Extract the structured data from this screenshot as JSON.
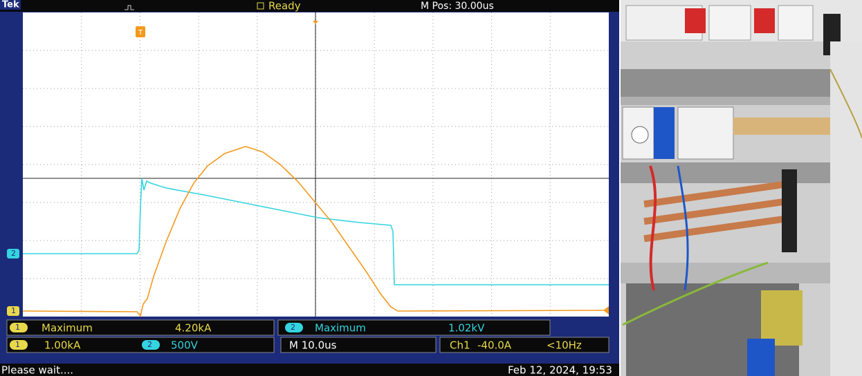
{
  "header": {
    "brand": "Tek",
    "status": "Ready",
    "position": "M Pos: 30.00us"
  },
  "markers": {
    "trigger": "T",
    "ch1": "1",
    "ch2": "2"
  },
  "measurements": [
    {
      "channel": "1",
      "label": "Maximum",
      "value": "4.20kA"
    },
    {
      "channel": "2",
      "label": "Maximum",
      "value": "1.02kV"
    }
  ],
  "settings": {
    "ch1_scale": "1.00kA",
    "ch2_scale": "500V",
    "timebase": "M 10.0us",
    "trigger_source": "Ch1",
    "trigger_level": "-40.0A",
    "frequency": "<10Hz"
  },
  "footer": {
    "message": "Please wait....",
    "datetime": "Feb 12, 2024, 19:53"
  }
}
